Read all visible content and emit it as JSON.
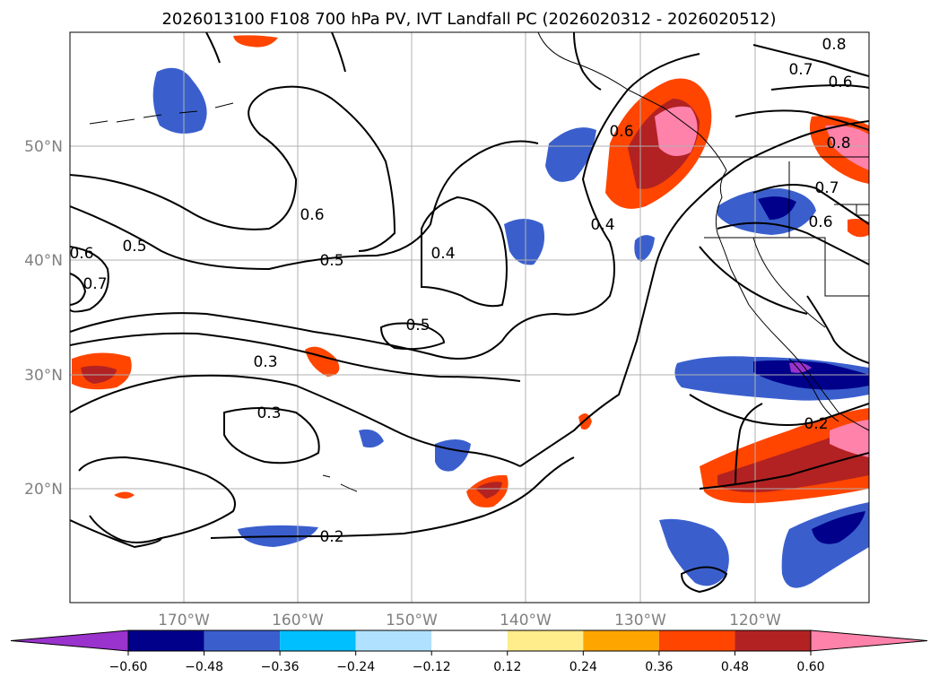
{
  "title": "2026013100 F108 700 hPa PV, IVT Landfall PC (2026020312 - 2026020512)",
  "lon_labels": [
    "170°W",
    "160°W",
    "150°W",
    "140°W",
    "130°W",
    "120°W"
  ],
  "lat_labels": [
    "50°N",
    "40°N",
    "30°N",
    "20°N"
  ],
  "colorbar": {
    "colors": [
      "#9a32cd",
      "#00008b",
      "#3a5fcd",
      "#00bfff",
      "#b0e2ff",
      "#ffffff",
      "#ffec8b",
      "#ffa500",
      "#ff4500",
      "#b22222",
      "#ff82ab"
    ],
    "ticks": [
      "−0.60",
      "−0.48",
      "−0.36",
      "−0.24",
      "−0.12",
      "0.12",
      "0.24",
      "0.36",
      "0.48",
      "0.60"
    ]
  },
  "contour_labels": [
    "0.8",
    "0.7",
    "0.6",
    "0.6",
    "0.8",
    "0.7",
    "0.6",
    "0.6",
    "0.5",
    "0.5",
    "0.6",
    "0.7",
    "0.4",
    "0.4",
    "0.5",
    "0.3",
    "0.3",
    "0.2",
    "0.2"
  ]
}
